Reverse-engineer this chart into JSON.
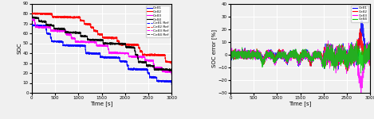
{
  "left_plot": {
    "xlabel": "Time [s]",
    "ylabel": "SOC",
    "xlim": [
      0,
      3000
    ],
    "ylim": [
      0,
      90
    ],
    "yticks": [
      0,
      10,
      20,
      30,
      40,
      50,
      60,
      70,
      80,
      90
    ],
    "xticks": [
      0,
      500,
      1000,
      1500,
      2000,
      2500,
      3000
    ],
    "legend_solid": [
      "Cell1",
      "Cell2",
      "Cell3",
      "Cell4"
    ],
    "legend_dashed": [
      "Cell1 Ref",
      "Cell2 Ref",
      "Cell3 Ref",
      "Cell4 Ref"
    ],
    "colors_solid": [
      "#0000ff",
      "#ff0000",
      "#ff00ff",
      "#000000"
    ],
    "colors_dashed": [
      "#0000ff",
      "#ff0000",
      "#ff00ff",
      "#404040"
    ],
    "cell_starts": [
      68,
      80,
      74,
      76
    ],
    "cell_ends": [
      8,
      28,
      18,
      20
    ],
    "n_steps": 15
  },
  "right_plot": {
    "xlabel": "Time [s]",
    "ylabel": "SOC error [%]",
    "xlim": [
      0,
      3000
    ],
    "ylim": [
      -30,
      40
    ],
    "yticks": [
      -30,
      -20,
      -10,
      0,
      10,
      20,
      30,
      40
    ],
    "xticks": [
      0,
      500,
      1000,
      1500,
      2000,
      2500,
      3000
    ],
    "legend": [
      "Cell1",
      "Cell2",
      "Cell3",
      "Cell4"
    ],
    "colors": [
      "#0000ff",
      "#ff0000",
      "#ff00ff",
      "#00cc00"
    ]
  },
  "background_color": "#f0f0f0",
  "grid_color": "white"
}
